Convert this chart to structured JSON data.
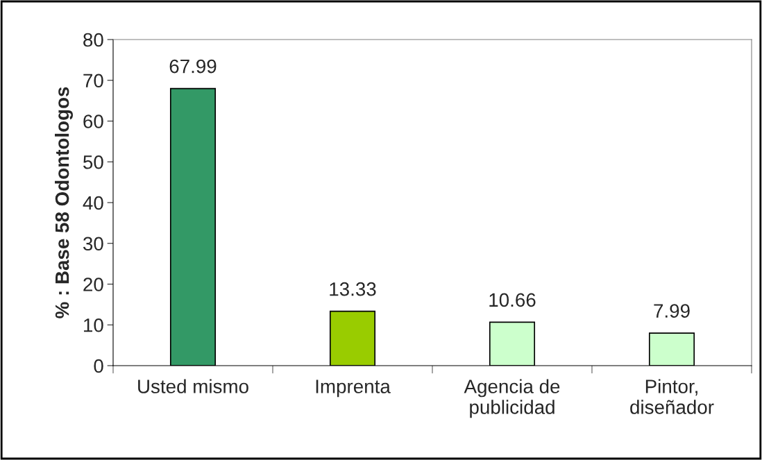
{
  "chart_data": {
    "type": "bar",
    "ylabel": "% : Base 58 Odontologos",
    "categories": [
      "Usted mismo",
      "Imprenta",
      "Agencia de\npublicidad",
      "Pintor,\ndiseñador"
    ],
    "values": [
      67.99,
      13.33,
      10.66,
      7.99
    ],
    "colors": [
      "#339966",
      "#99cc00",
      "#ccffcc",
      "#ccffcc"
    ],
    "ylim": [
      0,
      80
    ],
    "yticks": [
      0,
      10,
      20,
      30,
      40,
      50,
      60,
      70,
      80
    ],
    "data_labels": true,
    "grid": false,
    "legend": false
  }
}
